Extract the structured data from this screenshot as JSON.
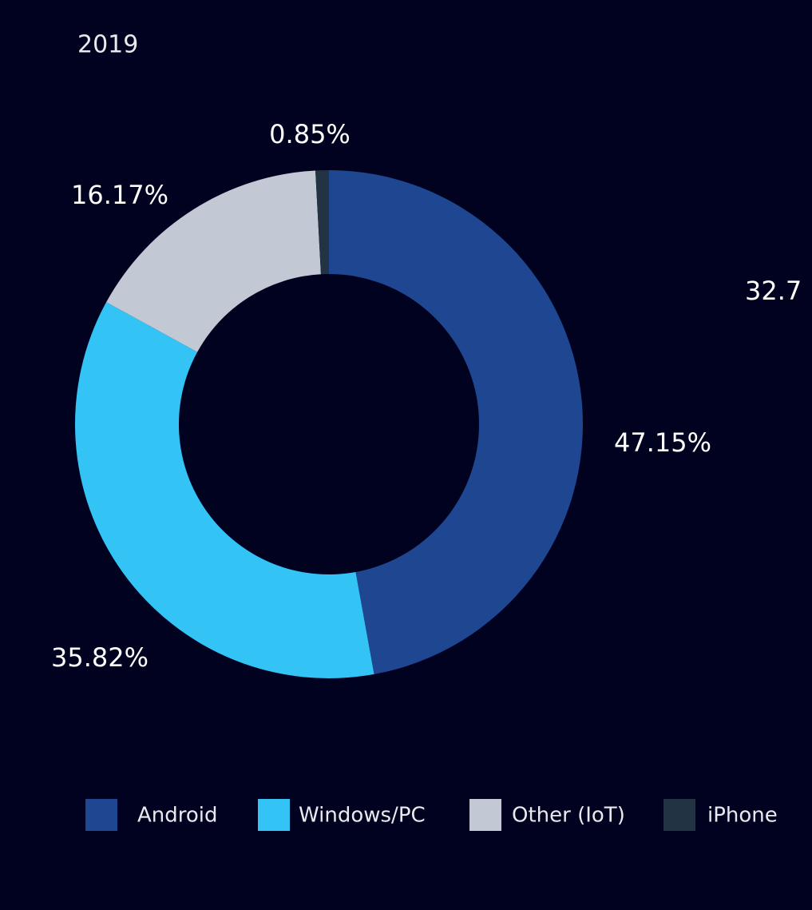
{
  "chart_data": {
    "type": "donut",
    "title": "2019",
    "categories": [
      "Android",
      "Windows/PC",
      "Other (IoT)",
      "iPhone"
    ],
    "values": [
      47.15,
      35.82,
      16.17,
      0.85
    ],
    "value_labels": [
      "47.15%",
      "35.82%",
      "16.17%",
      "0.85%"
    ],
    "colors": [
      "#1f4690",
      "#33c4f5",
      "#c2c8d4",
      "#223344"
    ],
    "legend": "bottom"
  },
  "cropped_label": "32.7"
}
